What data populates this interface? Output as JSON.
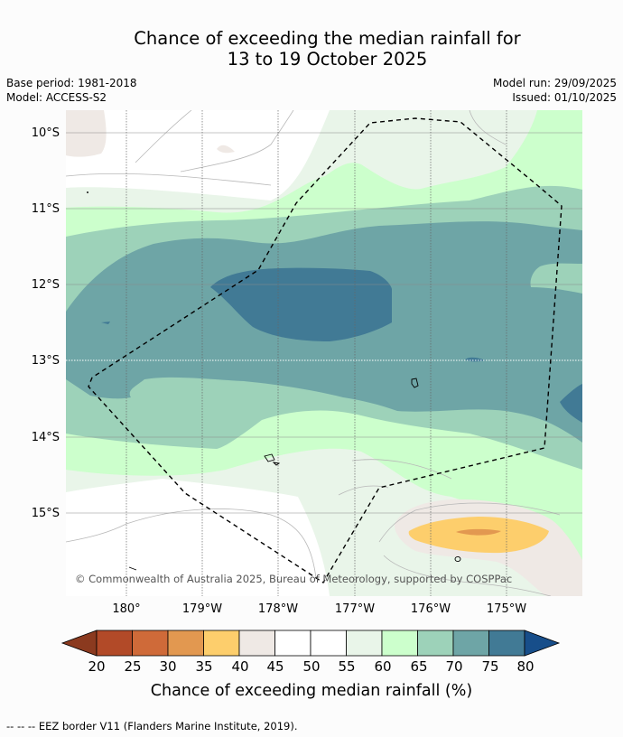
{
  "title": {
    "line1": "Chance of exceeding the median rainfall for",
    "line2": "13 to 19 October 2025"
  },
  "meta_left": {
    "base_period": "Base period: 1981-2018",
    "model": "Model: ACCESS-S2"
  },
  "meta_right": {
    "model_run": "Model run: 29/09/2025",
    "issued": "Issued: 01/10/2025"
  },
  "map": {
    "lat_labels": [
      "10°S",
      "11°S",
      "12°S",
      "13°S",
      "14°S",
      "15°S"
    ],
    "lon_labels": [
      "180°",
      "179°W",
      "178°W",
      "177°W",
      "176°W",
      "175°W"
    ],
    "copyright": "© Commonwealth of Australia 2025, Bureau of Meteorology, supported by COSPPac"
  },
  "legend": {
    "ticks": [
      "20",
      "25",
      "30",
      "35",
      "40",
      "45",
      "50",
      "55",
      "60",
      "65",
      "70",
      "75",
      "80"
    ],
    "colors": [
      "#8b3a1f",
      "#b24a28",
      "#cf6a39",
      "#e29850",
      "#fdce6c",
      "#efe9e5",
      "#ffffff",
      "#ffffff",
      "#e9f5e9",
      "#ccffcc",
      "#9dd2b9",
      "#6ea5a6",
      "#417a95",
      "#174e8a"
    ],
    "label": "Chance of exceeding median rainfall (%)"
  },
  "footer": {
    "eez_symbol": "-- -- --",
    "eez_text": "EEZ border V11 (Flanders Marine Institute, 2019)."
  }
}
